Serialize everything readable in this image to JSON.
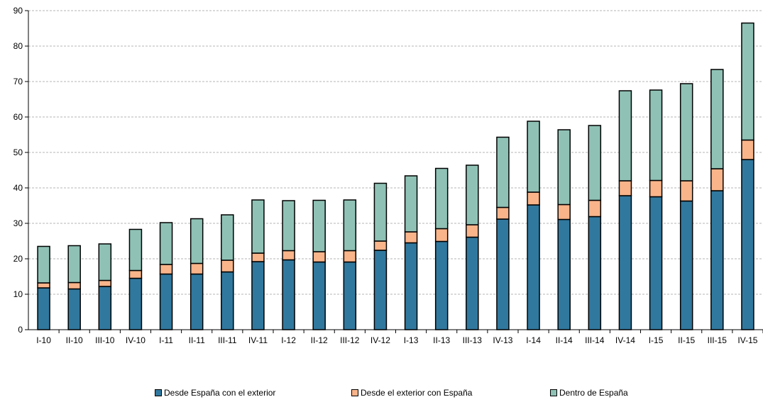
{
  "chart_data": {
    "type": "bar",
    "stacked": true,
    "categories": [
      "I-10",
      "II-10",
      "III-10",
      "IV-10",
      "I-11",
      "II-11",
      "III-11",
      "IV-11",
      "I-12",
      "II-12",
      "III-12",
      "IV-12",
      "I-13",
      "II-13",
      "III-13",
      "IV-13",
      "I-14",
      "II-14",
      "III-14",
      "IV-14",
      "I-15",
      "II-15",
      "III-15",
      "IV-15"
    ],
    "series": [
      {
        "name": "Desde España con el exterior",
        "color": "#31789E",
        "values": [
          11.8,
          11.5,
          12.2,
          14.5,
          15.7,
          15.7,
          16.3,
          19.2,
          19.7,
          19.1,
          19.1,
          22.4,
          24.5,
          24.9,
          26.1,
          31.2,
          35.2,
          31.1,
          31.9,
          37.8,
          37.5,
          36.3,
          39.2,
          48.0
        ]
      },
      {
        "name": "Desde el exterior con España",
        "color": "#F9B48A",
        "values": [
          1.4,
          1.8,
          1.7,
          2.2,
          2.7,
          3.0,
          3.3,
          2.4,
          2.6,
          2.9,
          3.2,
          2.6,
          3.1,
          3.6,
          3.5,
          3.3,
          3.6,
          4.2,
          4.6,
          4.2,
          4.6,
          5.7,
          6.2,
          5.5
        ]
      },
      {
        "name": "Dentro de España",
        "color": "#8FC2B5",
        "values": [
          10.3,
          10.4,
          10.3,
          11.6,
          11.8,
          12.6,
          12.8,
          15.0,
          14.1,
          14.5,
          14.3,
          16.3,
          15.8,
          17.0,
          16.8,
          19.8,
          20.0,
          21.1,
          21.1,
          25.4,
          25.5,
          27.4,
          28.0,
          33.0
        ]
      }
    ],
    "y_ticks": [
      "0",
      "10",
      "20",
      "30",
      "40",
      "50",
      "60",
      "70",
      "80",
      "90"
    ],
    "ylim": [
      0,
      90
    ],
    "grid": true,
    "legend_position": "bottom"
  }
}
